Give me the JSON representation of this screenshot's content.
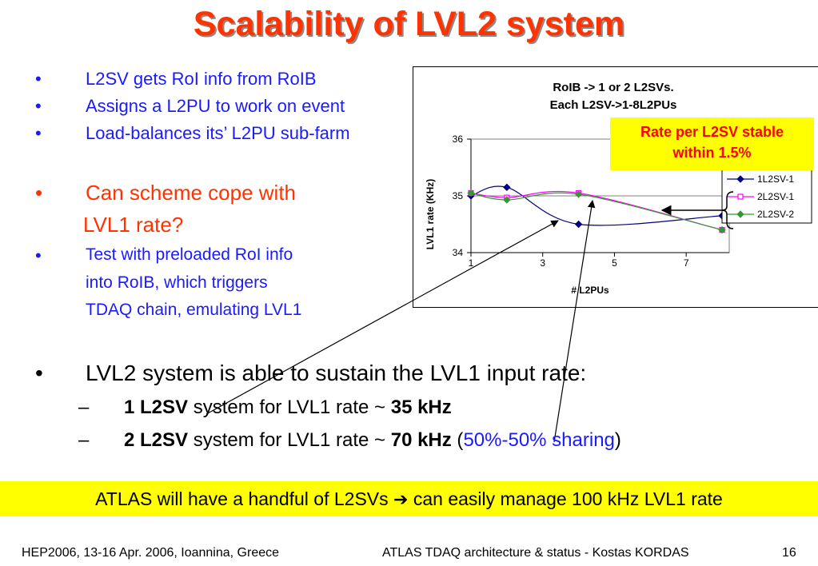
{
  "title": "Scalability of LVL2 system",
  "bullets_top": [
    "L2SV gets RoI info from RoIB",
    "Assigns a L2PU to work on event",
    "Load-balances its’ L2PU sub-farm"
  ],
  "question": {
    "line1": "Can scheme cope with",
    "line2": "LVL1 rate?"
  },
  "test": {
    "line1": "Test with preloaded RoI info",
    "line2": "into RoIB, which triggers",
    "line3": "TDAQ chain, emulating LVL1"
  },
  "main_bullet": "LVL2 system is able to sustain the LVL1 input rate:",
  "sub1": {
    "bold1": "1 L2SV",
    "text": " system for LVL1 rate ~ ",
    "bold2": "35 kHz"
  },
  "sub2": {
    "bold1": "2 L2SV",
    "text": " system for LVL1 rate ~ ",
    "bold2": "70 kHz",
    "paren_open": " (",
    "blue": "50%-50% sharing",
    "paren_close": ")"
  },
  "note": {
    "line1": "Rate per L2SV stable",
    "line2": "within 1.5%"
  },
  "banner": {
    "part1": "ATLAS will have a handful of L2SVs ",
    "arrow": "➔",
    "part2": " can easily manage 100 kHz LVL1 rate"
  },
  "footer": {
    "left": "HEP2006, 13-16 Apr. 2006, Ioannina, Greece",
    "center": "ATLAS TDAQ architecture & status - Kostas KORDAS",
    "right": "16"
  },
  "colors": {
    "title": "#ff3300",
    "bullet": "#1a1aff",
    "note_bg": "#ffff00",
    "note_text": "#ff0000"
  },
  "chart_data": {
    "type": "line",
    "title": "RoIB -> 1 or 2 L2SVs.",
    "subtitle": "Each L2SV->1-8L2PUs",
    "xlabel": "# L2PUs",
    "ylabel": "LVL1 rate (KHz)",
    "xlim": [
      1,
      8.2
    ],
    "ylim": [
      34,
      36
    ],
    "xticks": [
      1,
      3,
      5,
      7
    ],
    "yticks": [
      34,
      35,
      36
    ],
    "grid": "horizontal",
    "legend": "right",
    "series": [
      {
        "name": "1L2SV-1",
        "color": "#000080",
        "marker": "diamond",
        "x": [
          1,
          2,
          4,
          8
        ],
        "y": [
          35.0,
          35.15,
          34.5,
          34.65
        ]
      },
      {
        "name": "2L2SV-1",
        "color": "#ff00ff",
        "marker": "square",
        "x": [
          1,
          2,
          4,
          8
        ],
        "y": [
          35.05,
          34.97,
          35.05,
          34.4
        ]
      },
      {
        "name": "2L2SV-2",
        "color": "#339933",
        "marker": "diamond",
        "x": [
          1,
          2,
          4,
          8
        ],
        "y": [
          35.05,
          34.93,
          35.03,
          34.4
        ]
      }
    ]
  }
}
